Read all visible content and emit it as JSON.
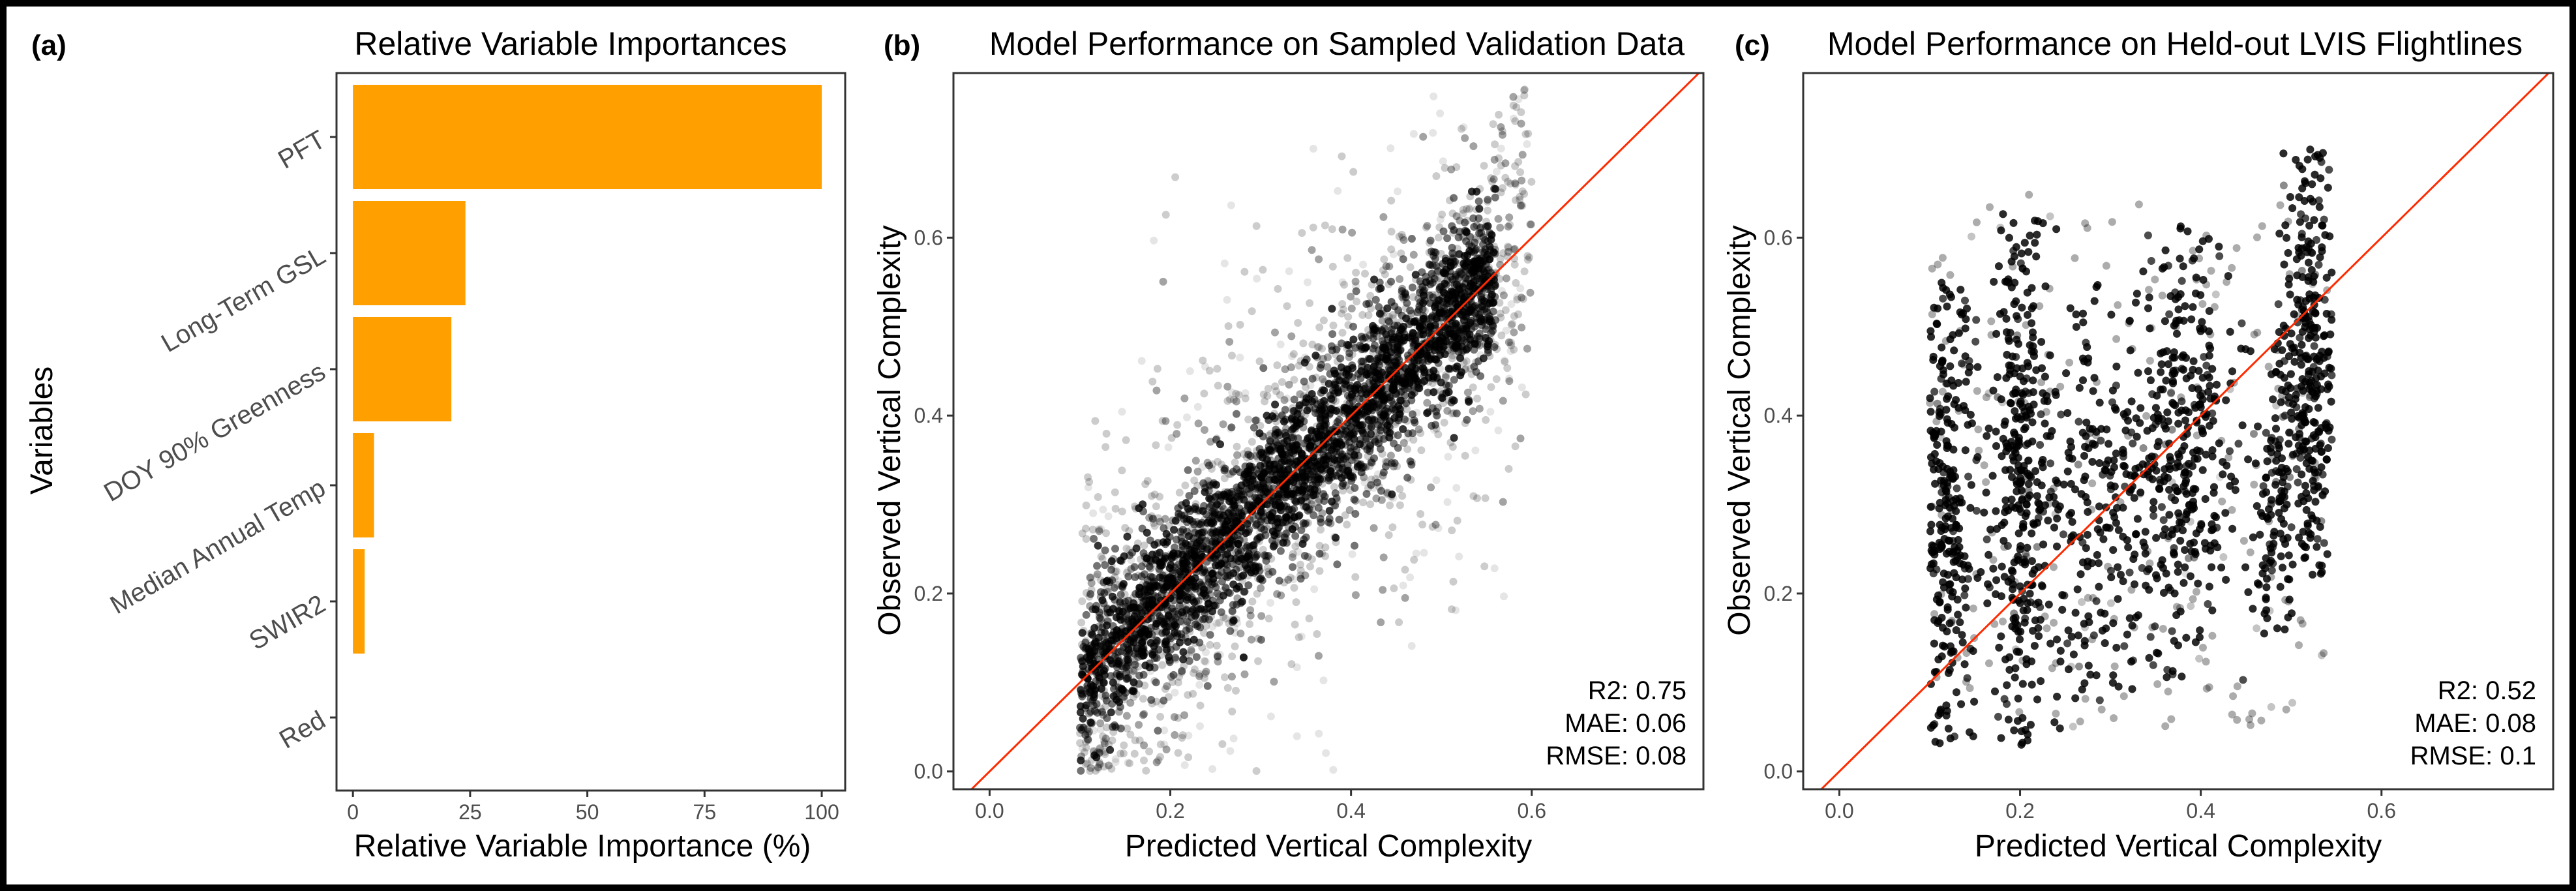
{
  "chart_data": [
    {
      "panel": "(a)",
      "type": "bar",
      "orientation": "horizontal",
      "title": "Relative Variable Importances",
      "xlabel": "Relative Variable Importance (%)",
      "ylabel": "Variables",
      "categories": [
        "PFT",
        "Long-Term GSL",
        "DOY 90% Greenness",
        "Median Annual Temp",
        "SWIR2",
        "Red"
      ],
      "values": [
        100,
        24,
        21,
        4.5,
        2.5,
        0
      ],
      "xlim": [
        -3.5,
        105
      ],
      "xticks": [
        0,
        25,
        50,
        75,
        100
      ],
      "bar_color": "#ffa000"
    },
    {
      "panel": "(b)",
      "type": "scatter",
      "title": "Model Performance on Sampled Validation Data",
      "xlabel": "Predicted Vertical Complexity",
      "ylabel": "Observed Vertical Complexity",
      "xlim": [
        -0.04,
        0.79
      ],
      "ylim": [
        -0.02,
        0.785
      ],
      "xticks": [
        0.0,
        0.2,
        0.4,
        0.6
      ],
      "yticks": [
        0.0,
        0.2,
        0.4,
        0.6
      ],
      "reference_line": "1:1",
      "reference_color": "#ff2a00",
      "point_color": "#000000",
      "stats": [
        "R2: 0.75",
        "MAE: 0.06",
        "RMSE: 0.08"
      ]
    },
    {
      "panel": "(c)",
      "type": "scatter",
      "title": "Model Performance on Held-out LVIS Flightlines",
      "xlabel": "Predicted Vertical Complexity",
      "ylabel": "Observed Vertical Complexity",
      "xlim": [
        -0.04,
        0.79
      ],
      "ylim": [
        -0.02,
        0.785
      ],
      "xticks": [
        0.0,
        0.2,
        0.4,
        0.6
      ],
      "yticks": [
        0.0,
        0.2,
        0.4,
        0.6
      ],
      "reference_line": "1:1",
      "reference_color": "#ff2a00",
      "point_color": "#000000",
      "stats": [
        "R2: 0.52",
        "MAE: 0.08",
        "RMSE: 0.1"
      ]
    }
  ]
}
